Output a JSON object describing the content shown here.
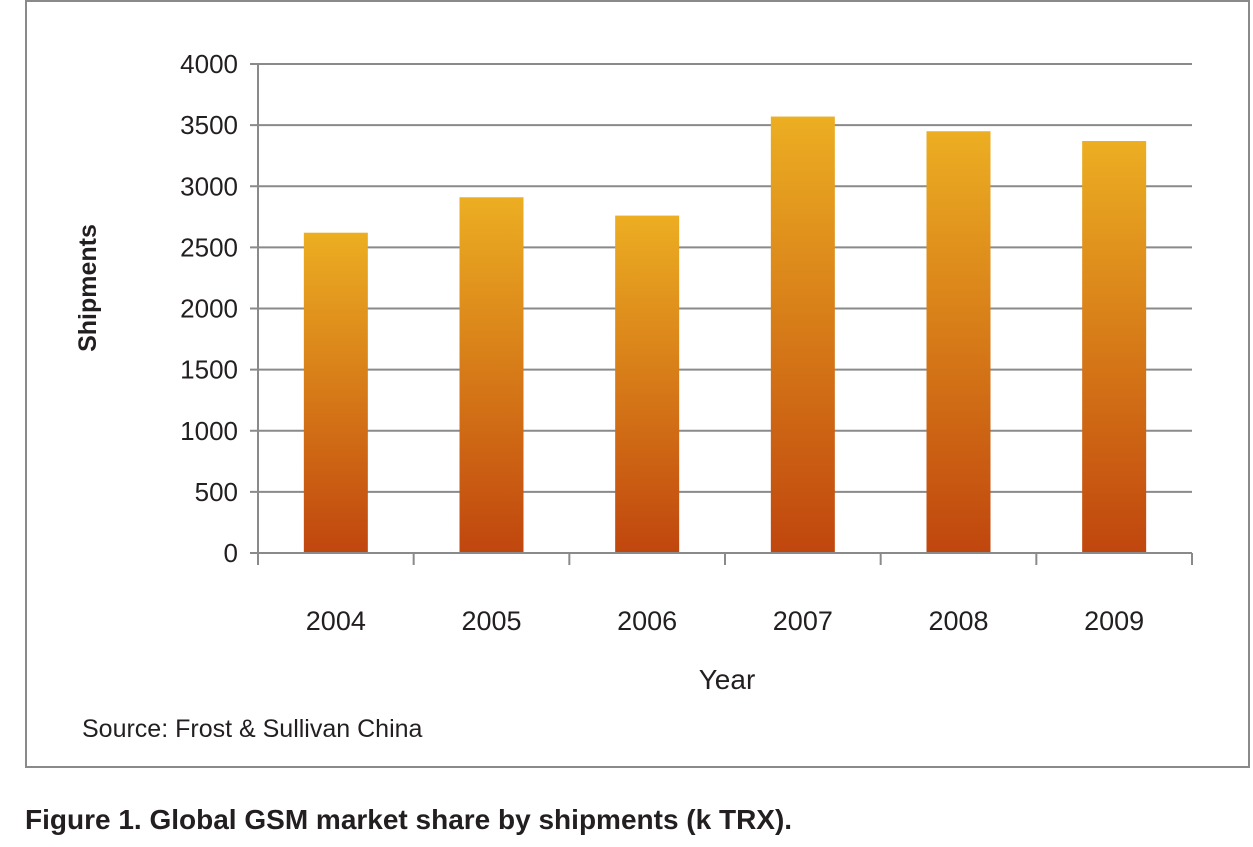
{
  "chart_data": {
    "type": "bar",
    "categories": [
      "2004",
      "2005",
      "2006",
      "2007",
      "2008",
      "2009"
    ],
    "values": [
      2620,
      2910,
      2760,
      3570,
      3450,
      3370
    ],
    "xlabel": "Year",
    "ylabel": "Shipments",
    "ylim": [
      0,
      4000
    ],
    "yticks": [
      0,
      500,
      1000,
      1500,
      2000,
      2500,
      3000,
      3500,
      4000
    ],
    "grid": true,
    "legend": "none",
    "colors": {
      "bar_top": "#ecae22",
      "bar_bottom": "#c0460e",
      "grid": "#8a8a8a",
      "frame": "#8a8a8a",
      "text": "#231f20"
    }
  },
  "source": "Source: Frost & Sullivan China",
  "caption": "Figure 1. Global GSM market share by shipments (k TRX)."
}
